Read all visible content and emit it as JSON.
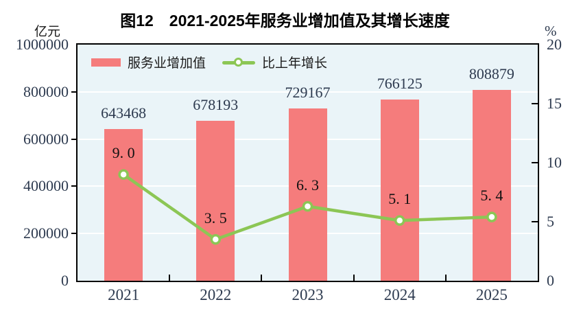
{
  "title": "图12　2021-2025年服务业增加值及其增长速度",
  "left_axis": {
    "unit": "亿元",
    "max": 1000000,
    "ticks": [
      0,
      200000,
      400000,
      600000,
      800000,
      1000000
    ],
    "tick_labels": [
      "0",
      "200000",
      "400000",
      "600000",
      "800000",
      "1000000"
    ]
  },
  "right_axis": {
    "unit": "%",
    "max": 20,
    "ticks": [
      0,
      5,
      10,
      15,
      20
    ],
    "tick_labels": [
      "0",
      "5",
      "10",
      "15",
      "20"
    ]
  },
  "legend": {
    "items": [
      {
        "label": "服务业增加值",
        "marker": "bar-swatch"
      },
      {
        "label": "比上年增长",
        "marker": "line-marker"
      }
    ]
  },
  "chart_data": {
    "type": "bar",
    "title": "图12　2021-2025年服务业增加值及其增长速度",
    "categories": [
      "2021",
      "2022",
      "2023",
      "2024",
      "2025"
    ],
    "series": [
      {
        "name": "服务业增加值",
        "type": "bar",
        "axis": "left",
        "unit": "亿元",
        "values": [
          643468,
          678193,
          729167,
          766125,
          808879
        ],
        "labels": [
          "643468",
          "678193",
          "729167",
          "766125",
          "808879"
        ]
      },
      {
        "name": "比上年增长",
        "type": "line",
        "axis": "right",
        "unit": "%",
        "values": [
          9.0,
          3.5,
          6.3,
          5.1,
          5.4
        ],
        "labels": [
          "9. 0",
          "3. 5",
          "6. 3",
          "5. 1",
          "5. 4"
        ]
      }
    ],
    "left_ylim": [
      0,
      1000000
    ],
    "right_ylim": [
      0,
      20
    ],
    "grid": "horizontal-white-lines",
    "legend_position": "top-left-inside",
    "plot_background": "light-blue"
  },
  "colors": {
    "bar": "#F57C7C",
    "line": "#8CC655",
    "marker_fill": "#FFFFFF",
    "plot_bg": "#EAF4F8",
    "grid": "#FFFFFF",
    "border": "#000000",
    "number_label": "#2D3A4F",
    "growth_label": "#111111",
    "title": "#000000"
  }
}
